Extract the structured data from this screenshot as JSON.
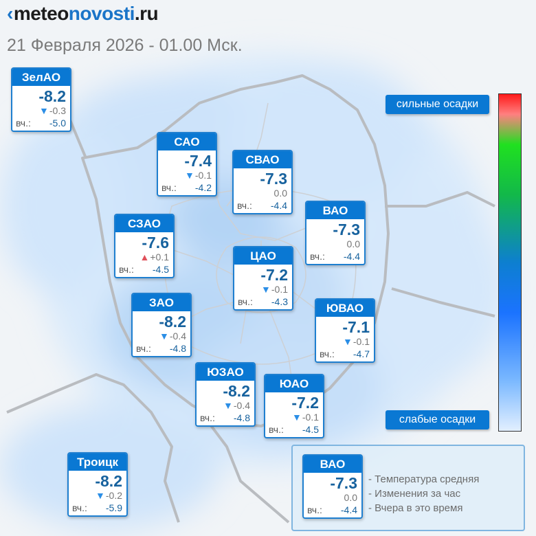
{
  "brand": {
    "mark": "‹",
    "part1": "meteo",
    "part2": "novosti",
    "part3": ".ru"
  },
  "datetime": "21 Февраля 2026 - 01.00 Мск.",
  "yesterday_label": "вч.:",
  "districts": [
    {
      "name": "ЗелАО",
      "temp": "-8.2",
      "change": "-0.3",
      "trend": "down",
      "yesterday": "-5.0"
    },
    {
      "name": "САО",
      "temp": "-7.4",
      "change": "-0.1",
      "trend": "down",
      "yesterday": "-4.2"
    },
    {
      "name": "СВАО",
      "temp": "-7.3",
      "change": "0.0",
      "trend": "none",
      "yesterday": "-4.4"
    },
    {
      "name": "ВАО",
      "temp": "-7.3",
      "change": "0.0",
      "trend": "none",
      "yesterday": "-4.4"
    },
    {
      "name": "СЗАО",
      "temp": "-7.6",
      "change": "+0.1",
      "trend": "up",
      "yesterday": "-4.5"
    },
    {
      "name": "ЦАО",
      "temp": "-7.2",
      "change": "-0.1",
      "trend": "down",
      "yesterday": "-4.3"
    },
    {
      "name": "ЗАО",
      "temp": "-8.2",
      "change": "-0.4",
      "trend": "down",
      "yesterday": "-4.8"
    },
    {
      "name": "ЮВАО",
      "temp": "-7.1",
      "change": "-0.1",
      "trend": "down",
      "yesterday": "-4.7"
    },
    {
      "name": "ЮЗАО",
      "temp": "-8.2",
      "change": "-0.4",
      "trend": "down",
      "yesterday": "-4.8"
    },
    {
      "name": "ЮАО",
      "temp": "-7.2",
      "change": "-0.1",
      "trend": "down",
      "yesterday": "-4.5"
    },
    {
      "name": "Троицк",
      "temp": "-8.2",
      "change": "-0.2",
      "trend": "down",
      "yesterday": "-5.9"
    }
  ],
  "precip_scale": {
    "strong_label": "сильные осадки",
    "weak_label": "слабые осадки"
  },
  "legend": {
    "sample": {
      "name": "ВАО",
      "temp": "-7.3",
      "change": "0.0",
      "yesterday": "-4.4"
    },
    "items": [
      "- Температура средняя",
      "- Изменения за час",
      "- Вчера в это время"
    ]
  },
  "colors": {
    "accent": "#0a78d3",
    "temp_text": "#17629e",
    "arrow_down": "#2b8ee6",
    "arrow_up": "#e0505a"
  }
}
